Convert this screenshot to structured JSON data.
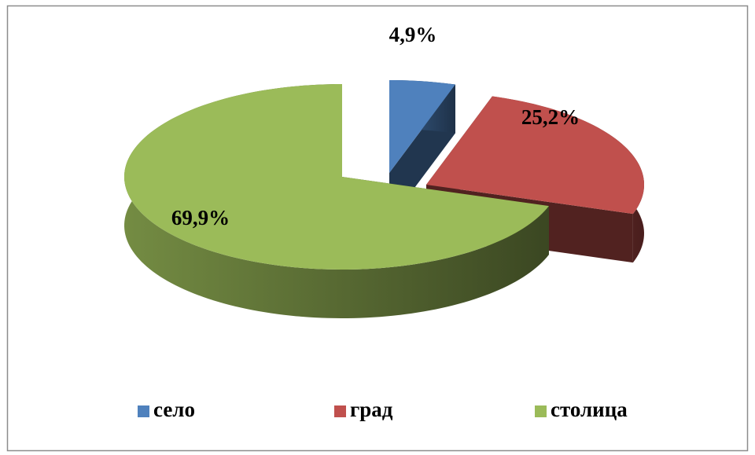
{
  "chart_data": {
    "type": "pie3d",
    "categories": [
      "село",
      "град",
      "столица"
    ],
    "values": [
      4.9,
      25.2,
      69.9
    ],
    "value_labels": [
      "4,9%",
      "25,2%",
      "69,9%"
    ],
    "colors": [
      "#4f81bd",
      "#c0504d",
      "#9bbb59"
    ],
    "legend": "bottom"
  }
}
